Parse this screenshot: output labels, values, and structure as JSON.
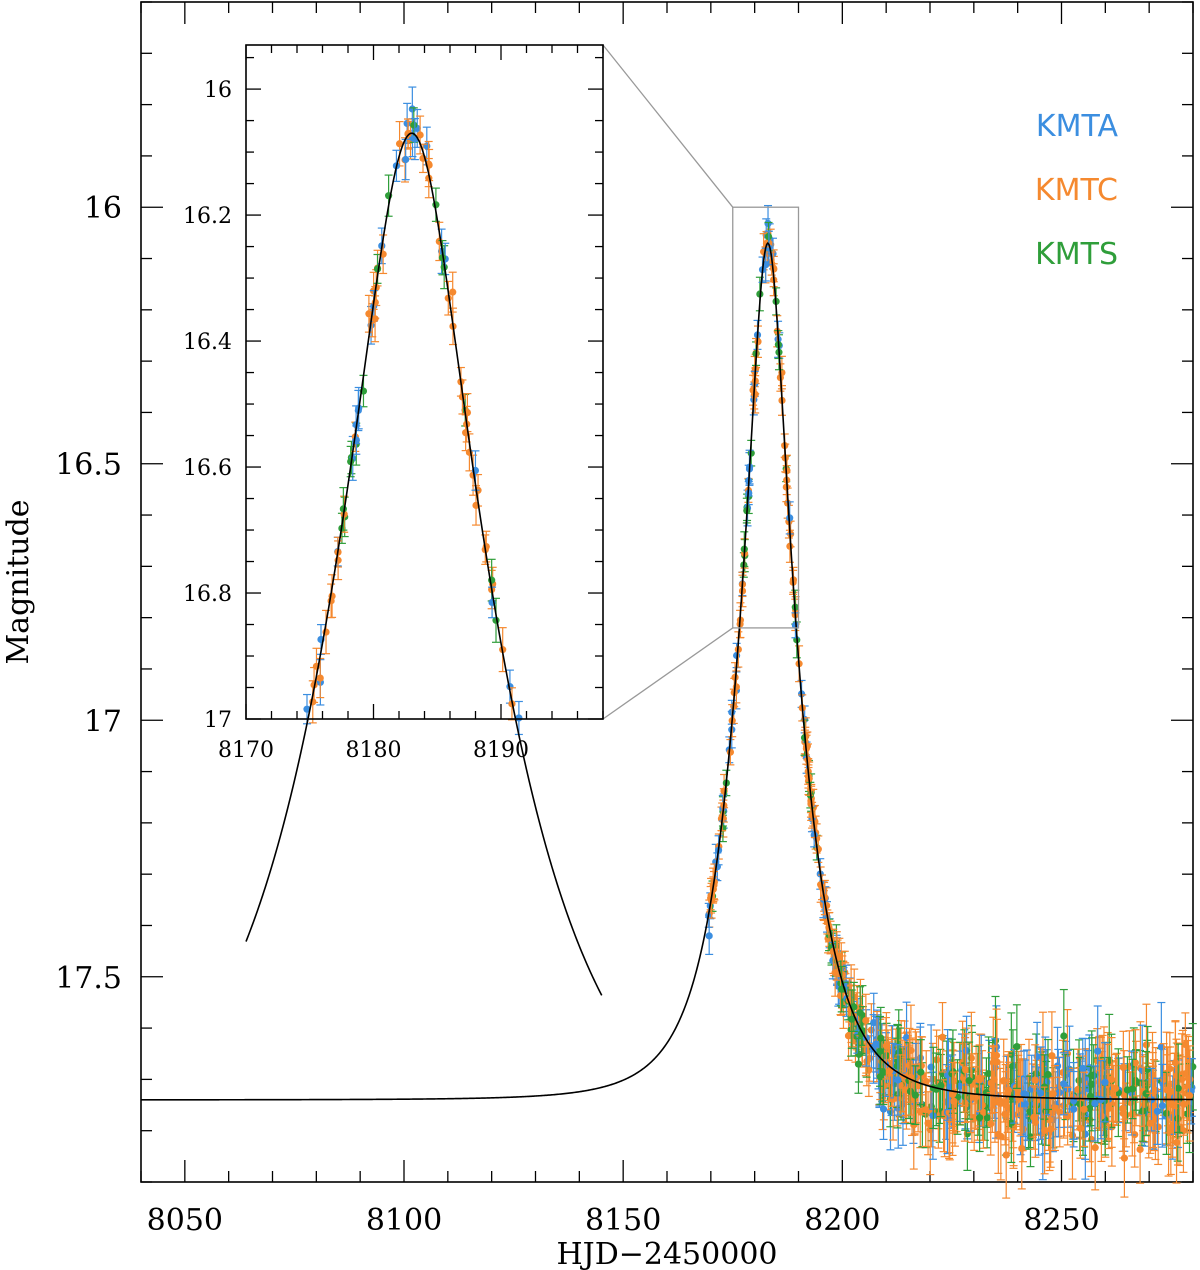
{
  "chart_data": {
    "type": "scatter",
    "xlabel": "HJD−2450000",
    "ylabel": "Magnitude",
    "xlim": [
      8040,
      8280
    ],
    "ylim": [
      15.6,
      17.9
    ],
    "y_inverted": true,
    "x_ticks": [
      8050,
      8100,
      8150,
      8200,
      8250
    ],
    "y_ticks": [
      16,
      16.5,
      17,
      17.5
    ],
    "x_tick_labels": [
      "8050",
      "8100",
      "8150",
      "8200",
      "8250"
    ],
    "y_tick_labels": [
      "16",
      "16.5",
      "17",
      "17.5"
    ],
    "legend": [
      {
        "name": "KMTA",
        "color": "#3b8ee0"
      },
      {
        "name": "KMTC",
        "color": "#f5892f"
      },
      {
        "name": "KMTS",
        "color": "#2f9e3a"
      }
    ],
    "model": {
      "description": "single-lens fit curve",
      "t0": 8183.0,
      "peak_mag": 16.07,
      "baseline_mag": 17.74
    },
    "inset": {
      "xlim": [
        8170,
        8198
      ],
      "ylim": [
        15.93,
        17.0
      ],
      "x_ticks": [
        8170,
        8180,
        8190
      ],
      "y_ticks": [
        16,
        16.2,
        16.4,
        16.6,
        16.8,
        17
      ],
      "x_tick_labels": [
        "8170",
        "8180",
        "8190"
      ],
      "y_tick_labels": [
        "16",
        "16.2",
        "16.4",
        "16.6",
        "16.8",
        "17"
      ],
      "zoom_box": {
        "x": [
          8175,
          8190
        ],
        "y": [
          16.0,
          16.82
        ]
      }
    }
  }
}
